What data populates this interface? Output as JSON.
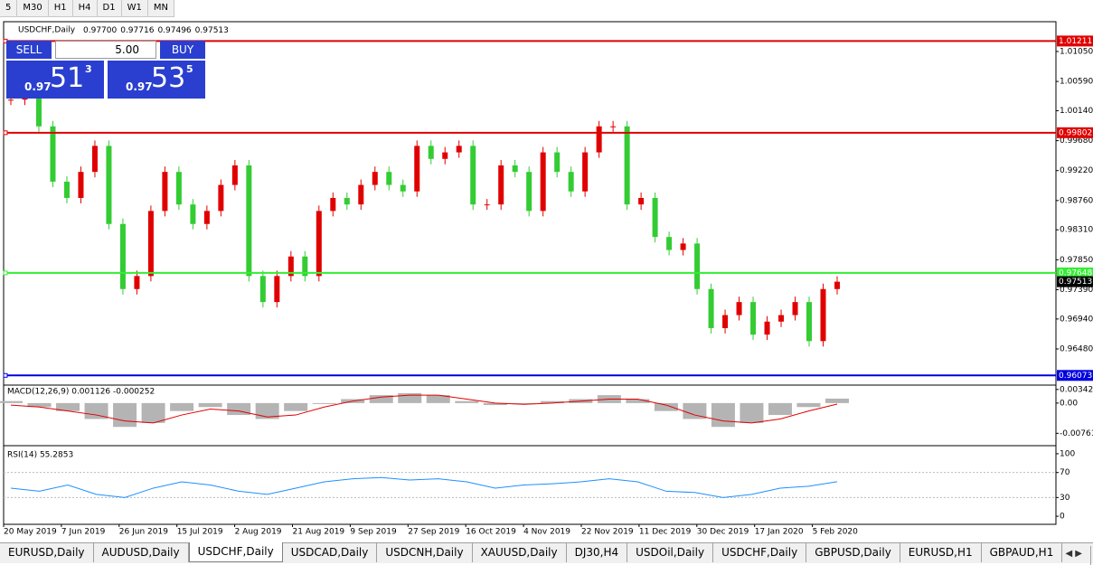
{
  "toolbar": {
    "periods": [
      "5",
      "M30",
      "H1",
      "H4",
      "D1",
      "W1",
      "MN"
    ]
  },
  "header": {
    "symbol": "USDCHF,Daily",
    "prices": [
      "0.97700",
      "0.97716",
      "0.97496",
      "0.97513"
    ]
  },
  "trade_panel": {
    "sell": "SELL",
    "lots": "5.00",
    "buy": "BUY",
    "bid_prefix": "0.97",
    "bid_big": "51",
    "bid_sup": "3",
    "ask_prefix": "0.97",
    "ask_big": "53",
    "ask_sup": "5"
  },
  "price_chart": {
    "ylim": [
      0.95938,
      1.01508
    ],
    "yticks": [
      {
        "value": 1.0105,
        "label": "1.01050"
      },
      {
        "value": 1.0059,
        "label": "1.00590"
      },
      {
        "value": 1.0014,
        "label": "1.00140"
      },
      {
        "value": 0.9968,
        "label": "0.99680"
      },
      {
        "value": 0.9922,
        "label": "0.99220"
      },
      {
        "value": 0.9876,
        "label": "0.98760"
      },
      {
        "value": 0.9831,
        "label": "0.98310"
      },
      {
        "value": 0.9785,
        "label": "0.97850"
      },
      {
        "value": 0.9739,
        "label": "0.97390"
      },
      {
        "value": 0.9694,
        "label": "0.96940"
      },
      {
        "value": 0.9648,
        "label": "0.96480"
      }
    ],
    "levels": [
      {
        "value": 1.01211,
        "label": "1.01211",
        "color": "#e00000"
      },
      {
        "value": 0.99802,
        "label": "0.99802",
        "color": "#e00000"
      },
      {
        "value": 0.97648,
        "label": "0.97648",
        "color": "#33ee33"
      },
      {
        "value": 0.96073,
        "label": "0.96073",
        "color": "#0000e0"
      }
    ],
    "current": {
      "value": 0.97513,
      "label": "0.97513"
    },
    "up_color": "#e00000",
    "down_color": "#33cc33",
    "closes": [
      1.0031,
      1.004,
      0.999,
      0.9905,
      0.988,
      0.992,
      0.996,
      0.984,
      0.974,
      0.976,
      0.986,
      0.992,
      0.987,
      0.984,
      0.986,
      0.99,
      0.993,
      0.976,
      0.972,
      0.976,
      0.979,
      0.976,
      0.986,
      0.988,
      0.987,
      0.99,
      0.992,
      0.99,
      0.989,
      0.996,
      0.994,
      0.995,
      0.996,
      0.987,
      0.987,
      0.993,
      0.992,
      0.986,
      0.995,
      0.992,
      0.989,
      0.995,
      0.999,
      0.999,
      0.987,
      0.988,
      0.982,
      0.98,
      0.981,
      0.974,
      0.968,
      0.97,
      0.972,
      0.967,
      0.969,
      0.97,
      0.972,
      0.966,
      0.974,
      0.97513
    ]
  },
  "macd": {
    "label": "MACD(12,26,9) 0.001126 -0.000252",
    "ylim": [
      -0.0105,
      0.0043
    ],
    "yticks": [
      {
        "value": 0.003428,
        "label": "0.003428"
      },
      {
        "value": 0,
        "label": "0.00"
      },
      {
        "value": -0.007615,
        "label": "-0.007615"
      }
    ],
    "histogram": [
      0.0005,
      -0.001,
      -0.002,
      -0.004,
      -0.006,
      -0.005,
      -0.002,
      -0.001,
      -0.003,
      -0.004,
      -0.002,
      0,
      0.001,
      0.002,
      0.0025,
      0.002,
      0.0005,
      -0.0005,
      0,
      0.0005,
      0.001,
      0.002,
      0.001,
      -0.002,
      -0.004,
      -0.006,
      -0.005,
      -0.003,
      -0.001,
      0.001126
    ],
    "signal": [
      -0.0005,
      -0.001,
      -0.002,
      -0.003,
      -0.0045,
      -0.005,
      -0.003,
      -0.0015,
      -0.002,
      -0.0035,
      -0.003,
      -0.001,
      0.0005,
      0.0015,
      0.002,
      0.002,
      0.001,
      0,
      -0.0003,
      0,
      0.0005,
      0.001,
      0.001,
      -0.0005,
      -0.003,
      -0.0045,
      -0.005,
      -0.004,
      -0.002,
      -0.000252
    ]
  },
  "rsi": {
    "label": "RSI(14) 55.2853",
    "ylim": [
      -10,
      110
    ],
    "yticks": [
      100,
      70,
      30,
      0
    ],
    "levels": [
      70,
      30
    ],
    "values": [
      45,
      40,
      50,
      35,
      30,
      45,
      55,
      50,
      40,
      35,
      45,
      55,
      60,
      62,
      58,
      60,
      55,
      45,
      50,
      52,
      55,
      60,
      55,
      40,
      38,
      30,
      35,
      45,
      48,
      55.2853
    ]
  },
  "dates": [
    "20 May 2019",
    "7 Jun 2019",
    "26 Jun 2019",
    "15 Jul 2019",
    "2 Aug 2019",
    "21 Aug 2019",
    "9 Sep 2019",
    "27 Sep 2019",
    "16 Oct 2019",
    "4 Nov 2019",
    "22 Nov 2019",
    "11 Dec 2019",
    "30 Dec 2019",
    "17 Jan 2020",
    "5 Feb 2020"
  ],
  "tabs": [
    "EURUSD,Daily",
    "AUDUSD,Daily",
    "USDCHF,Daily",
    "USDCAD,Daily",
    "USDCNH,Daily",
    "XAUUSD,Daily",
    "DJ30,H4",
    "USDOil,Daily",
    "USDCHF,Daily",
    "GBPUSD,Daily",
    "EURUSD,H1",
    "GBPAUD,H1"
  ],
  "active_tab": 2
}
